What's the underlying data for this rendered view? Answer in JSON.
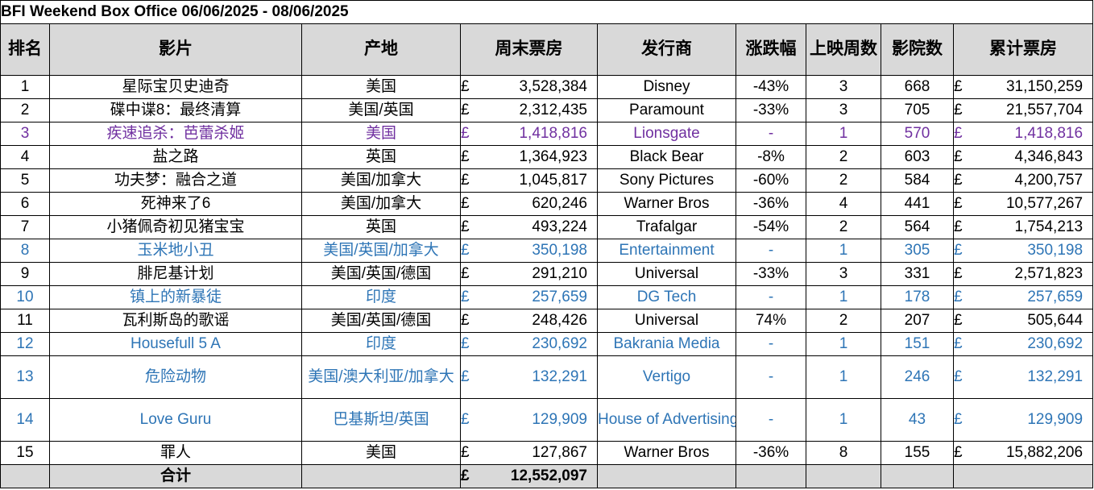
{
  "title": "BFI Weekend Box Office 06/06/2025 - 08/06/2025",
  "headers": [
    "排名",
    "影片",
    "产地",
    "周末票房",
    "发行商",
    "涨跌幅",
    "上映周数",
    "影院数",
    "累计票房"
  ],
  "currency_symbol": "£",
  "colors": {
    "new_release": "#2e75b6",
    "highlight_release": "#7030a0",
    "header_bg": "#d9d9d9"
  },
  "rows": [
    {
      "rank": "1",
      "film": "星际宝贝史迪奇",
      "origin": "美国",
      "weekend": "3,528,384",
      "distributor": "Disney",
      "change": "-43%",
      "weeks": "3",
      "cinemas": "668",
      "total": "31,150,259"
    },
    {
      "rank": "2",
      "film": "碟中谍8：最终清算",
      "origin": "美国/英国",
      "weekend": "2,312,435",
      "distributor": "Paramount",
      "change": "-33%",
      "weeks": "3",
      "cinemas": "705",
      "total": "21,557,704"
    },
    {
      "rank": "3",
      "film": "疾速追杀：芭蕾杀姬",
      "origin": "美国",
      "weekend": "1,418,816",
      "distributor": "Lionsgate",
      "change": "-",
      "weeks": "1",
      "cinemas": "570",
      "total": "1,418,816"
    },
    {
      "rank": "4",
      "film": "盐之路",
      "origin": "英国",
      "weekend": "1,364,923",
      "distributor": "Black Bear",
      "change": "-8%",
      "weeks": "2",
      "cinemas": "603",
      "total": "4,346,843"
    },
    {
      "rank": "5",
      "film": "功夫梦：融合之道",
      "origin": "美国/加拿大",
      "weekend": "1,045,817",
      "distributor": "Sony Pictures",
      "change": "-60%",
      "weeks": "2",
      "cinemas": "584",
      "total": "4,200,757"
    },
    {
      "rank": "6",
      "film": "死神来了6",
      "origin": "美国/加拿大",
      "weekend": "620,246",
      "distributor": "Warner Bros",
      "change": "-36%",
      "weeks": "4",
      "cinemas": "441",
      "total": "10,577,267"
    },
    {
      "rank": "7",
      "film": "小猪佩奇初见猪宝宝",
      "origin": "英国",
      "weekend": "493,224",
      "distributor": "Trafalgar",
      "change": "-54%",
      "weeks": "2",
      "cinemas": "564",
      "total": "1,754,213"
    },
    {
      "rank": "8",
      "film": "玉米地小丑",
      "origin": "美国/英国/加拿大",
      "weekend": "350,198",
      "distributor": "Entertainment",
      "change": "-",
      "weeks": "1",
      "cinemas": "305",
      "total": "350,198"
    },
    {
      "rank": "9",
      "film": "腓尼基计划",
      "origin": "美国/英国/德国",
      "weekend": "291,210",
      "distributor": "Universal",
      "change": "-33%",
      "weeks": "3",
      "cinemas": "331",
      "total": "2,571,823"
    },
    {
      "rank": "10",
      "film": "镇上的新暴徒",
      "origin": "印度",
      "weekend": "257,659",
      "distributor": "DG Tech",
      "change": "-",
      "weeks": "1",
      "cinemas": "178",
      "total": "257,659"
    },
    {
      "rank": "11",
      "film": "瓦利斯岛的歌谣",
      "origin": "美国/英国/德国",
      "weekend": "248,426",
      "distributor": "Universal",
      "change": "74%",
      "weeks": "2",
      "cinemas": "207",
      "total": "505,644"
    },
    {
      "rank": "12",
      "film": "Housefull 5 A",
      "origin": "印度",
      "weekend": "230,692",
      "distributor": "Bakrania Media",
      "change": "-",
      "weeks": "1",
      "cinemas": "151",
      "total": "230,692"
    },
    {
      "rank": "13",
      "film": "危险动物",
      "origin": "美国/澳大利亚/加拿大",
      "weekend": "132,291",
      "distributor": "Vertigo",
      "change": "-",
      "weeks": "1",
      "cinemas": "246",
      "total": "132,291"
    },
    {
      "rank": "14",
      "film": "Love Guru",
      "origin": "巴基斯坦/英国",
      "weekend": "129,909",
      "distributor": "House of Advertising",
      "change": "-",
      "weeks": "1",
      "cinemas": "43",
      "total": "129,909"
    },
    {
      "rank": "15",
      "film": "罪人",
      "origin": "美国",
      "weekend": "127,867",
      "distributor": "Warner Bros",
      "change": "-36%",
      "weeks": "8",
      "cinemas": "155",
      "total": "15,882,206"
    }
  ],
  "total": {
    "label": "合计",
    "weekend": "12,552,097"
  }
}
